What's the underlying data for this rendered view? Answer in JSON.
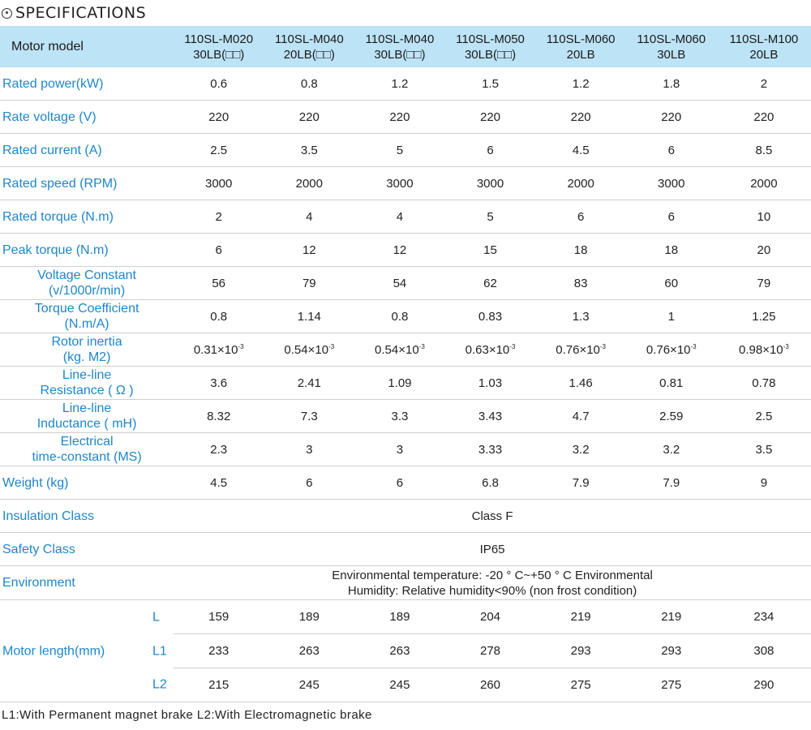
{
  "title": "SPECIFICATIONS",
  "header": {
    "label": "Motor model",
    "models": [
      [
        "110SL-M020",
        "30LB(□□)"
      ],
      [
        "110SL-M040",
        "20LB(□□)"
      ],
      [
        "110SL-M040",
        "30LB(□□)"
      ],
      [
        "110SL-M050",
        "30LB(□□)"
      ],
      [
        "110SL-M060",
        "20LB"
      ],
      [
        "110SL-M060",
        "30LB"
      ],
      [
        "110SL-M100",
        "20LB"
      ]
    ]
  },
  "rows": [
    {
      "label": [
        "Rated power(kW)"
      ],
      "values": [
        "0.6",
        "0.8",
        "1.2",
        "1.5",
        "1.2",
        "1.8",
        "2"
      ]
    },
    {
      "label": [
        "Rate voltage (V)"
      ],
      "values": [
        "220",
        "220",
        "220",
        "220",
        "220",
        "220",
        "220"
      ]
    },
    {
      "label": [
        "Rated current (A)"
      ],
      "values": [
        "2.5",
        "3.5",
        "5",
        "6",
        "4.5",
        "6",
        "8.5"
      ]
    },
    {
      "label": [
        "Rated speed (RPM)"
      ],
      "values": [
        "3000",
        "2000",
        "3000",
        "3000",
        "2000",
        "3000",
        "2000"
      ]
    },
    {
      "label": [
        "Rated torque (N.m)"
      ],
      "values": [
        "2",
        "4",
        "4",
        "5",
        "6",
        "6",
        "10"
      ]
    },
    {
      "label": [
        "Peak torque (N.m)"
      ],
      "values": [
        "6",
        "12",
        "12",
        "15",
        "18",
        "18",
        "20"
      ]
    },
    {
      "label": [
        "Voltage Constant",
        "(v/1000r/min)"
      ],
      "values": [
        "56",
        "79",
        "54",
        "62",
        "83",
        "60",
        "79"
      ]
    },
    {
      "label": [
        "Torque Coefficient",
        "(N.m/A)"
      ],
      "values": [
        "0.8",
        "1.14",
        "0.8",
        "0.83",
        "1.3",
        "1",
        "1.25"
      ]
    },
    {
      "label": [
        "Rotor inertia",
        "(kg. M2)"
      ],
      "values": [
        "0.31×10",
        "0.54×10",
        "0.54×10",
        "0.63×10",
        "0.76×10",
        "0.76×10",
        "0.98×10"
      ],
      "exponent": "-3"
    },
    {
      "label": [
        "Line-line",
        "Resistance ( Ω )"
      ],
      "values": [
        "3.6",
        "2.41",
        "1.09",
        "1.03",
        "1.46",
        "0.81",
        "0.78"
      ]
    },
    {
      "label": [
        "Line-line",
        "Inductance ( mH)"
      ],
      "values": [
        "8.32",
        "7.3",
        "3.3",
        "3.43",
        "4.7",
        "2.59",
        "2.5"
      ]
    },
    {
      "label": [
        "Electrical",
        "time-constant (MS)"
      ],
      "values": [
        "2.3",
        "3",
        "3",
        "3.33",
        "3.2",
        "3.2",
        "3.5"
      ]
    },
    {
      "label": [
        "Weight (kg)"
      ],
      "values": [
        "4.5",
        "6",
        "6",
        "6.8",
        "7.9",
        "7.9",
        "9"
      ]
    }
  ],
  "insulation": {
    "label": "Insulation Class",
    "value": "Class F"
  },
  "safety": {
    "label": "Safety Class",
    "value": "IP65"
  },
  "environment": {
    "label": "Environment",
    "line1": "Environmental temperature: -20 ° C~+50 ° C Environmental",
    "line2": "Humidity: Relative humidity<90% (non frost condition)"
  },
  "motor_length": {
    "label": "Motor length(mm)",
    "rows": [
      {
        "sub": "L",
        "values": [
          "159",
          "189",
          "189",
          "204",
          "219",
          "219",
          "234"
        ]
      },
      {
        "sub": "L1",
        "values": [
          "233",
          "263",
          "263",
          "278",
          "293",
          "293",
          "308"
        ]
      },
      {
        "sub": "L2",
        "values": [
          "215",
          "245",
          "245",
          "260",
          "275",
          "275",
          "290"
        ]
      }
    ]
  },
  "note": "L1:With Permanent magnet brake  L2:With Electromagnetic brake"
}
